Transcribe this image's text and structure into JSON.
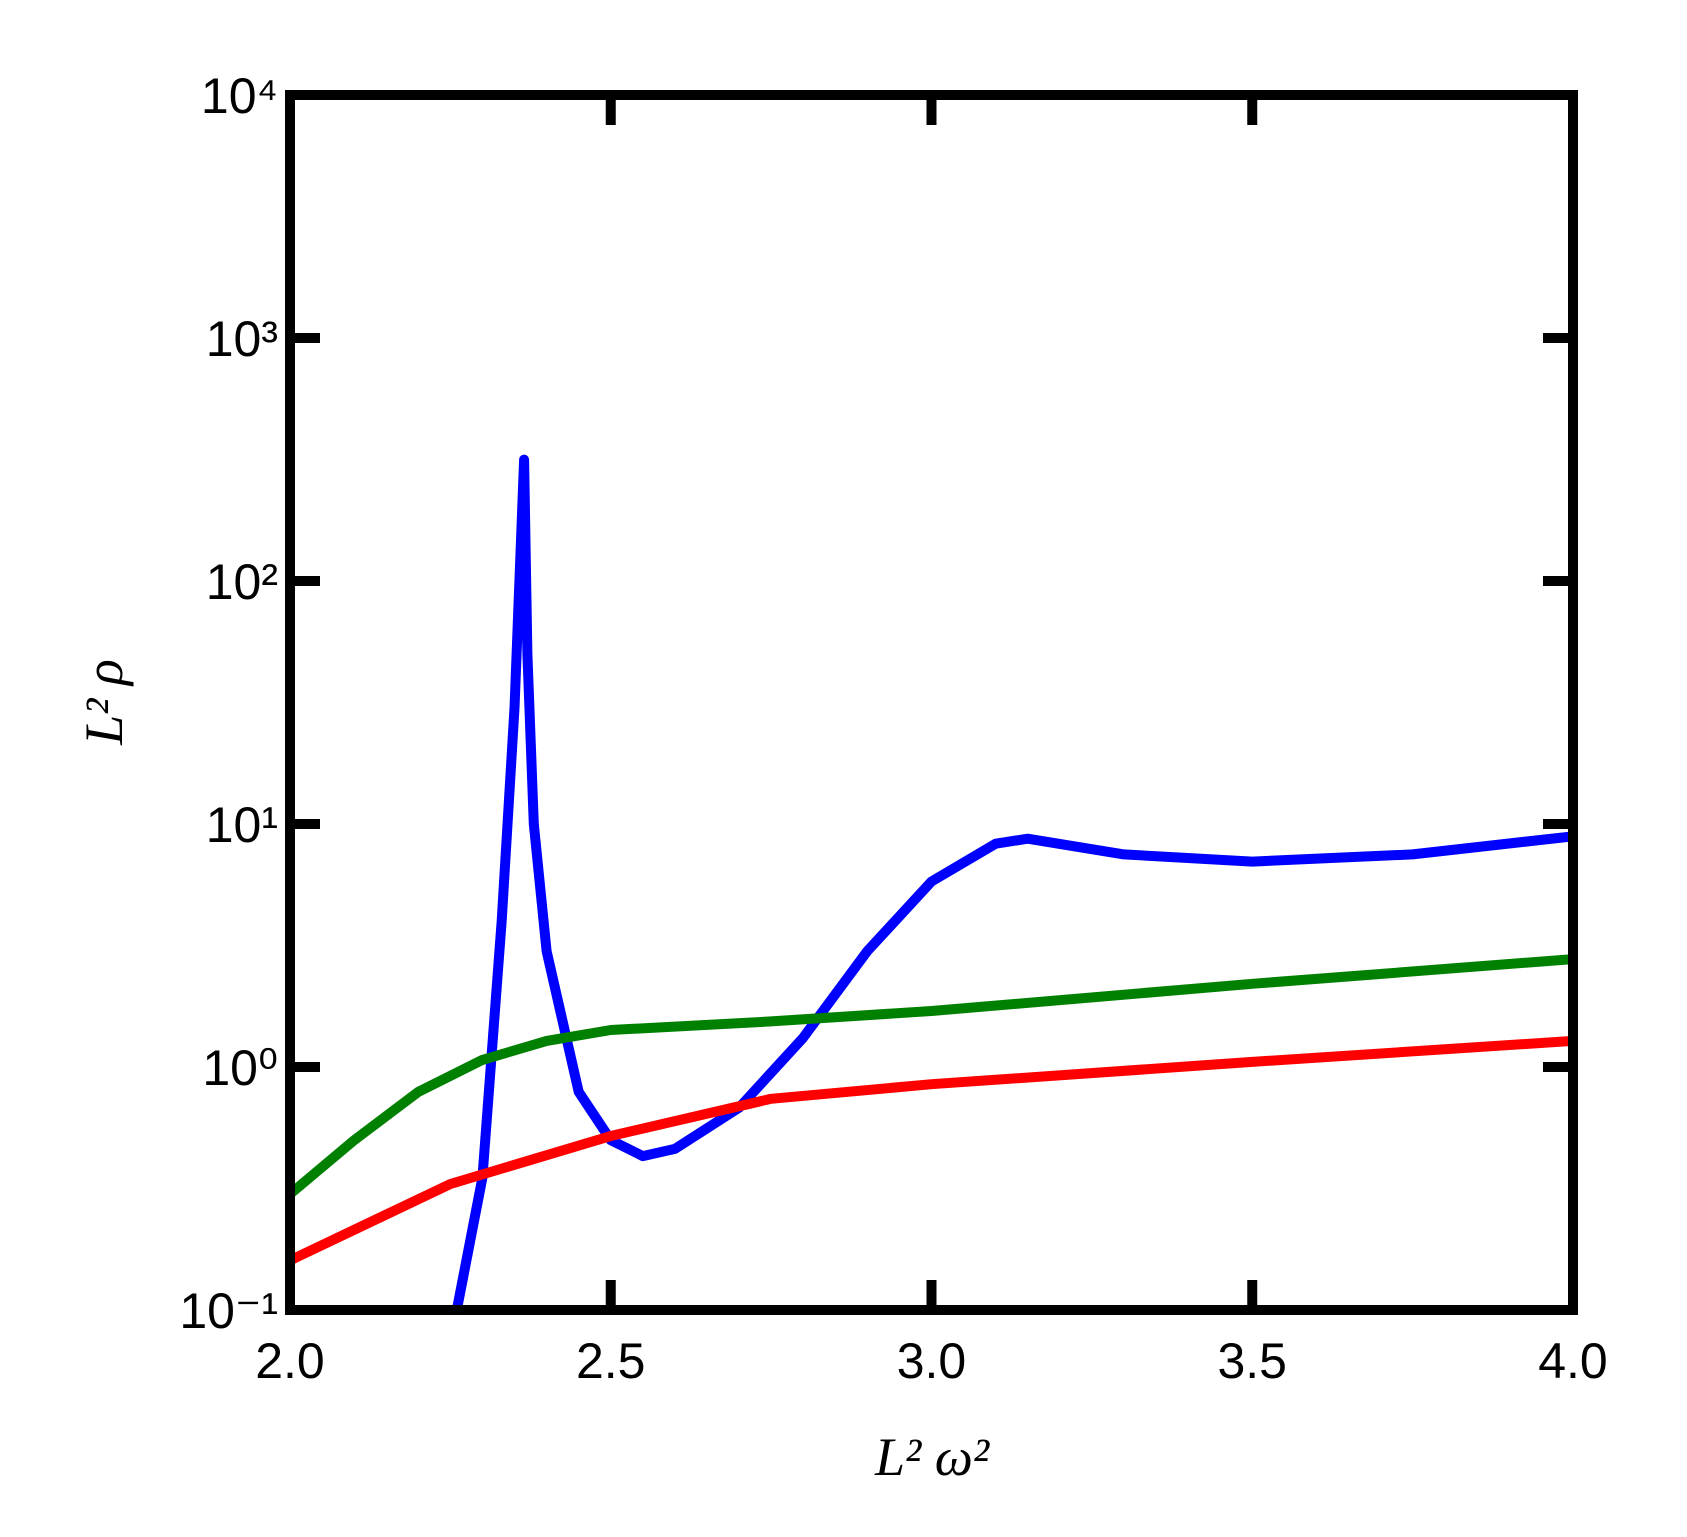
{
  "chart_data": {
    "type": "line",
    "xlabel": "L² ω²",
    "ylabel": "L² ρ",
    "xlim": [
      2.0,
      4.0
    ],
    "ylim": [
      0.1,
      10000
    ],
    "log_y": true,
    "xticks": [
      {
        "value": 2.0,
        "label": "2.0"
      },
      {
        "value": 2.5,
        "label": "2.5"
      },
      {
        "value": 3.0,
        "label": "3.0"
      },
      {
        "value": 3.5,
        "label": "3.5"
      },
      {
        "value": 4.0,
        "label": "4.0"
      }
    ],
    "yticks": [
      {
        "value": 0.1,
        "label": "10⁻¹"
      },
      {
        "value": 1,
        "label": "10⁰"
      },
      {
        "value": 10,
        "label": "10¹"
      },
      {
        "value": 100,
        "label": "10²"
      },
      {
        "value": 1000,
        "label": "10³"
      },
      {
        "value": 10000,
        "label": "10⁴"
      }
    ],
    "series": [
      {
        "color": "#0000ff",
        "x": [
          2.26,
          2.3,
          2.33,
          2.35,
          2.365,
          2.37,
          2.38,
          2.4,
          2.45,
          2.5,
          2.55,
          2.6,
          2.7,
          2.8,
          2.9,
          3.0,
          3.1,
          3.15,
          3.3,
          3.5,
          3.75,
          4.0
        ],
        "values": [
          0.1,
          0.35,
          4,
          30,
          316,
          50,
          10,
          3,
          0.79,
          0.5,
          0.43,
          0.46,
          0.68,
          1.32,
          3.0,
          5.8,
          8.3,
          8.7,
          7.5,
          7.0,
          7.5,
          8.9
        ]
      },
      {
        "color": "#008000",
        "x": [
          2.0,
          2.1,
          2.2,
          2.3,
          2.4,
          2.5,
          2.75,
          3.0,
          3.5,
          4.0
        ],
        "values": [
          0.3,
          0.5,
          0.79,
          1.07,
          1.28,
          1.42,
          1.54,
          1.7,
          2.2,
          2.78
        ]
      },
      {
        "color": "#ff0000",
        "x": [
          2.0,
          2.25,
          2.5,
          2.75,
          3.0,
          3.5,
          4.0
        ],
        "values": [
          0.16,
          0.33,
          0.52,
          0.74,
          0.85,
          1.05,
          1.28
        ]
      }
    ]
  }
}
